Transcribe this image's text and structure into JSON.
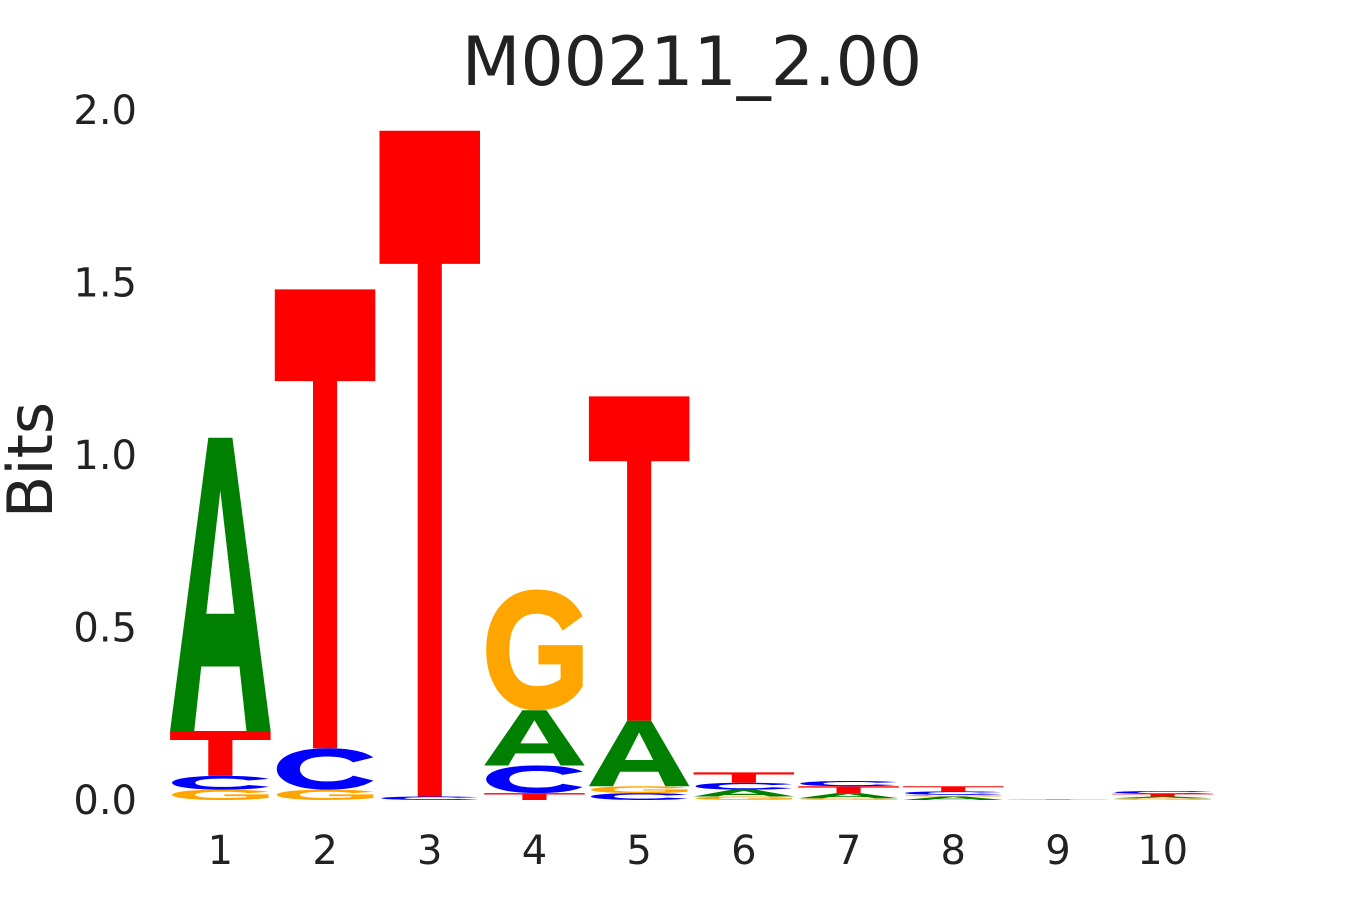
{
  "chart_data": {
    "type": "sequence_logo",
    "title": "M00211_2.00",
    "ylabel": "Bits",
    "xlabel": "",
    "ylim": [
      0,
      2.0
    ],
    "y_ticks": [
      "0.0",
      "0.5",
      "1.0",
      "1.5",
      "2.0"
    ],
    "y_tick_values": [
      0,
      0.5,
      1.0,
      1.5,
      2.0
    ],
    "grid": false,
    "colors": {
      "A": "#008000",
      "C": "#0000ff",
      "G": "#ffa500",
      "T": "#ff0000"
    },
    "positions": [
      {
        "label": "1",
        "letters": [
          {
            "base": "G",
            "height": 0.03
          },
          {
            "base": "C",
            "height": 0.04
          },
          {
            "base": "T",
            "height": 0.13
          },
          {
            "base": "A",
            "height": 0.85
          }
        ]
      },
      {
        "label": "2",
        "letters": [
          {
            "base": "G",
            "height": 0.03
          },
          {
            "base": "C",
            "height": 0.12
          },
          {
            "base": "T",
            "height": 1.33
          }
        ]
      },
      {
        "label": "3",
        "letters": [
          {
            "base": "C",
            "height": 0.01
          },
          {
            "base": "T",
            "height": 1.93
          }
        ]
      },
      {
        "label": "4",
        "letters": [
          {
            "base": "T",
            "height": 0.02
          },
          {
            "base": "C",
            "height": 0.08
          },
          {
            "base": "A",
            "height": 0.16
          },
          {
            "base": "G",
            "height": 0.35
          }
        ]
      },
      {
        "label": "5",
        "letters": [
          {
            "base": "C",
            "height": 0.02
          },
          {
            "base": "G",
            "height": 0.02
          },
          {
            "base": "A",
            "height": 0.19
          },
          {
            "base": "T",
            "height": 0.94
          }
        ]
      },
      {
        "label": "6",
        "letters": [
          {
            "base": "G",
            "height": 0.01
          },
          {
            "base": "A",
            "height": 0.02
          },
          {
            "base": "C",
            "height": 0.02
          },
          {
            "base": "T",
            "height": 0.03
          }
        ]
      },
      {
        "label": "7",
        "letters": [
          {
            "base": "G",
            "height": 0.005
          },
          {
            "base": "A",
            "height": 0.015
          },
          {
            "base": "T",
            "height": 0.02
          },
          {
            "base": "C",
            "height": 0.015
          }
        ]
      },
      {
        "label": "8",
        "letters": [
          {
            "base": "A",
            "height": 0.01
          },
          {
            "base": "G",
            "height": 0.005
          },
          {
            "base": "C",
            "height": 0.01
          },
          {
            "base": "T",
            "height": 0.015
          }
        ]
      },
      {
        "label": "9",
        "letters": [
          {
            "base": "G",
            "height": 0.001
          },
          {
            "base": "T",
            "height": 0.001
          }
        ]
      },
      {
        "label": "10",
        "letters": [
          {
            "base": "G",
            "height": 0.005
          },
          {
            "base": "A",
            "height": 0.005
          },
          {
            "base": "T",
            "height": 0.008
          },
          {
            "base": "C",
            "height": 0.008
          }
        ]
      }
    ]
  }
}
